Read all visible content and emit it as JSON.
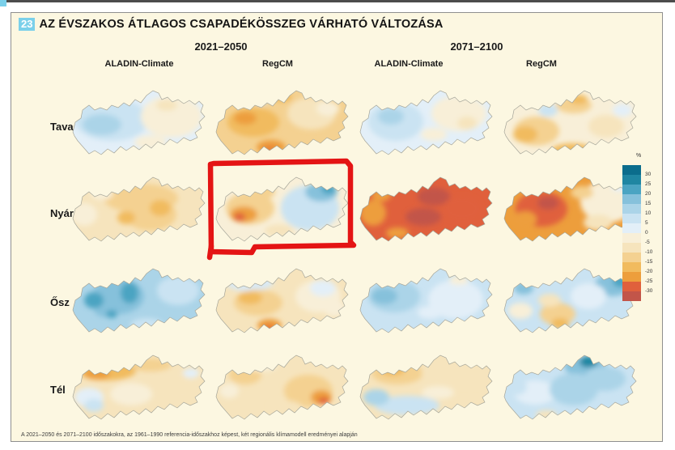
{
  "header": {
    "number": "23",
    "title": "AZ ÉVSZAKOS ÁTLAGOS CSAPADÉKÖSSZEG VÁRHATÓ VÁLTOZÁSA"
  },
  "footer": {
    "text": "A 2021–2050 és 2071–2100 időszakokra, az 1961–1990 referencia-időszakhoz képest, két regionális klímamodell eredményei alapján"
  },
  "annotation": {
    "shape": "hand-drawn red rectangle",
    "color": "#e41414",
    "target_season": "Nyár",
    "target_period": "2021–2050",
    "target_model": "RegCM"
  },
  "chart_data": {
    "type": "map-grid",
    "subject": "expected change of seasonal mean precipitation over Hungary (%)",
    "seasons": [
      "Tavasz",
      "Nyár",
      "Ősz",
      "Tél"
    ],
    "col_groups": [
      {
        "period": "2021–2050",
        "models": [
          "ALADIN-Climate",
          "RegCM"
        ]
      },
      {
        "period": "2071–2100",
        "models": [
          "ALADIN-Climate",
          "RegCM"
        ]
      }
    ],
    "legend": {
      "unit": "%",
      "ticks": [
        30,
        25,
        20,
        15,
        10,
        5,
        0,
        -5,
        -10,
        -15,
        -20,
        -25,
        -30
      ],
      "band_colors": [
        "#0b6d8c",
        "#1f86a2",
        "#4ba4c2",
        "#86c1db",
        "#abd4e8",
        "#cae3f2",
        "#e3eff8",
        "#f8efd8",
        "#f6e4bd",
        "#f4d191",
        "#f1bb5e",
        "#ed9e3c",
        "#e0603c",
        "#c25549"
      ]
    },
    "maps": [
      {
        "season": "Tavasz",
        "period": "2021–2050",
        "model": "ALADIN-Climate",
        "gist": "0 to +5% west, 0 to -5% east",
        "base": "#e3eff8",
        "patches": [
          [
            52,
            42,
            46,
            26,
            "#cae3f2"
          ],
          [
            40,
            48,
            24,
            13,
            "#abd4e8"
          ],
          [
            126,
            38,
            38,
            26,
            "#f8efd8"
          ],
          [
            120,
            24,
            13,
            7,
            "#f6e4bd"
          ],
          [
            100,
            70,
            20,
            9,
            "#f8efd8"
          ]
        ]
      },
      {
        "season": "Tavasz",
        "period": "2021–2050",
        "model": "RegCM",
        "gist": "-5 to -20% overall, strongest mid-west and south",
        "base": "#f4d191",
        "patches": [
          [
            50,
            45,
            32,
            18,
            "#f1bb5e"
          ],
          [
            40,
            40,
            14,
            8,
            "#ed9e3c"
          ],
          [
            72,
            76,
            18,
            9,
            "#ed9e3c"
          ],
          [
            70,
            79,
            8,
            5,
            "#e8823a"
          ],
          [
            122,
            34,
            30,
            20,
            "#f6e4bd"
          ],
          [
            142,
            28,
            14,
            9,
            "#f8efd8"
          ],
          [
            86,
            14,
            12,
            6,
            "#f1bb5e"
          ],
          [
            60,
            18,
            8,
            5,
            "#cae3f2"
          ]
        ]
      },
      {
        "season": "Tavasz",
        "period": "2071–2100",
        "model": "ALADIN-Climate",
        "gist": "0 to +10% west and centre, 0 to -10% east",
        "base": "#e3eff8",
        "patches": [
          [
            48,
            44,
            34,
            24,
            "#cae3f2"
          ],
          [
            42,
            38,
            16,
            10,
            "#abd4e8"
          ],
          [
            126,
            34,
            34,
            22,
            "#f8efd8"
          ],
          [
            136,
            46,
            12,
            8,
            "#f6e4bd"
          ],
          [
            95,
            60,
            16,
            8,
            "#f8efd8"
          ]
        ]
      },
      {
        "season": "Tavasz",
        "period": "2071–2100",
        "model": "RegCM",
        "gist": "-5 to -15% SW–NE band, near 0 elsewhere",
        "base": "#f8efd8",
        "patches": [
          [
            44,
            56,
            28,
            18,
            "#f4d191"
          ],
          [
            30,
            60,
            15,
            10,
            "#f1bb5e"
          ],
          [
            90,
            24,
            22,
            10,
            "#f4d191"
          ],
          [
            96,
            17,
            11,
            6,
            "#f1bb5e"
          ],
          [
            88,
            80,
            26,
            9,
            "#f1bb5e"
          ],
          [
            58,
            30,
            12,
            8,
            "#cae3f2"
          ],
          [
            130,
            50,
            22,
            14,
            "#f6e4bd"
          ],
          [
            150,
            30,
            12,
            8,
            "#e3eff8"
          ]
        ]
      },
      {
        "season": "Nyár",
        "period": "2021–2050",
        "model": "ALADIN-Climate",
        "gist": "-5 to -15% everywhere, strongest centre/NE",
        "base": "#f6e4bd",
        "patches": [
          [
            88,
            32,
            46,
            18,
            "#f4d191"
          ],
          [
            100,
            52,
            32,
            20,
            "#f4d191"
          ],
          [
            112,
            44,
            13,
            10,
            "#f1bb5e"
          ],
          [
            70,
            56,
            11,
            8,
            "#f1bb5e"
          ],
          [
            18,
            52,
            16,
            14,
            "#f8efd8"
          ],
          [
            40,
            26,
            14,
            8,
            "#f8efd8"
          ]
        ]
      },
      {
        "season": "Nyár",
        "period": "2021–2050",
        "model": "RegCM",
        "gist": "-10 to -25% west (red core), +5 to +20% east (blue NE)",
        "base": "#f8efd8",
        "patches": [
          [
            46,
            44,
            30,
            20,
            "#f4d191"
          ],
          [
            38,
            52,
            17,
            10,
            "#ed9e3c"
          ],
          [
            33,
            55,
            7,
            5,
            "#e0603c"
          ],
          [
            62,
            24,
            15,
            9,
            "#f4d191"
          ],
          [
            120,
            44,
            36,
            28,
            "#cae3f2"
          ],
          [
            134,
            24,
            20,
            12,
            "#86c1db"
          ],
          [
            143,
            21,
            9,
            6,
            "#4ba4c2"
          ],
          [
            82,
            72,
            18,
            8,
            "#f6e4bd"
          ]
        ]
      },
      {
        "season": "Nyár",
        "period": "2071–2100",
        "model": "ALADIN-Climate",
        "gist": "-20 to -30% and below everywhere",
        "base": "#e0603c",
        "patches": [
          [
            20,
            50,
            16,
            16,
            "#ed9e3c"
          ],
          [
            30,
            28,
            12,
            8,
            "#ed9e3c"
          ],
          [
            95,
            30,
            20,
            11,
            "#c25549"
          ],
          [
            82,
            55,
            22,
            11,
            "#c25549"
          ],
          [
            130,
            45,
            24,
            16,
            "#e0603c"
          ],
          [
            50,
            75,
            14,
            7,
            "#ed9e3c"
          ]
        ]
      },
      {
        "season": "Nyár",
        "period": "2071–2100",
        "model": "RegCM",
        "gist": "-20 to -30% west/centre, 0 to -5% NE",
        "base": "#ed9e3c",
        "patches": [
          [
            50,
            45,
            32,
            22,
            "#e0603c"
          ],
          [
            58,
            38,
            13,
            8,
            "#c25549"
          ],
          [
            30,
            58,
            14,
            10,
            "#ed9e3c"
          ],
          [
            132,
            36,
            34,
            26,
            "#f8efd8"
          ],
          [
            120,
            62,
            18,
            10,
            "#f6e4bd"
          ],
          [
            146,
            18,
            9,
            5,
            "#e3eff8"
          ],
          [
            100,
            25,
            14,
            8,
            "#f4d191"
          ]
        ]
      },
      {
        "season": "Ősz",
        "period": "2021–2050",
        "model": "ALADIN-Climate",
        "gist": "+5 to +20% everywhere, strongest centre/west",
        "base": "#abd4e8",
        "patches": [
          [
            60,
            40,
            32,
            22,
            "#86c1db"
          ],
          [
            74,
            36,
            11,
            13,
            "#4ba4c2"
          ],
          [
            46,
            56,
            16,
            10,
            "#86c1db"
          ],
          [
            52,
            62,
            7,
            5,
            "#4ba4c2"
          ],
          [
            134,
            33,
            26,
            18,
            "#cae3f2"
          ],
          [
            95,
            75,
            20,
            8,
            "#cae3f2"
          ],
          [
            30,
            45,
            12,
            10,
            "#4ba4c2"
          ]
        ]
      },
      {
        "season": "Ősz",
        "period": "2021–2050",
        "model": "RegCM",
        "gist": "-5 to -20% centre-west/south, ~0 to +5% north and east",
        "base": "#f6e4bd",
        "patches": [
          [
            45,
            22,
            30,
            12,
            "#d9e9f4"
          ],
          [
            56,
            48,
            30,
            16,
            "#f4d191"
          ],
          [
            46,
            42,
            15,
            8,
            "#f1bb5e"
          ],
          [
            70,
            76,
            15,
            8,
            "#ed9e3c"
          ],
          [
            69,
            80,
            7,
            5,
            "#e8763a"
          ],
          [
            130,
            40,
            28,
            20,
            "#f8efd8"
          ],
          [
            136,
            30,
            16,
            10,
            "#e3eff8"
          ],
          [
            150,
            55,
            14,
            10,
            "#f8efd8"
          ]
        ]
      },
      {
        "season": "Ősz",
        "period": "2071–2100",
        "model": "ALADIN-Climate",
        "gist": "+5 to +15% west, 0 to +5% east",
        "base": "#cae3f2",
        "patches": [
          [
            46,
            40,
            32,
            20,
            "#abd4e8"
          ],
          [
            34,
            40,
            16,
            10,
            "#86c1db"
          ],
          [
            122,
            44,
            34,
            24,
            "#e3eff8"
          ],
          [
            126,
            20,
            12,
            6,
            "#f8efd8"
          ],
          [
            90,
            60,
            15,
            8,
            "#e3eff8"
          ]
        ]
      },
      {
        "season": "Ősz",
        "period": "2071–2100",
        "model": "RegCM",
        "gist": "+5 to +15% mostly, -5 to -15% south-centre spot",
        "base": "#cae3f2",
        "patches": [
          [
            138,
            26,
            22,
            14,
            "#86c1db"
          ],
          [
            148,
            22,
            10,
            7,
            "#4ba4c2"
          ],
          [
            28,
            30,
            12,
            8,
            "#86c1db"
          ],
          [
            70,
            62,
            22,
            14,
            "#f4d191"
          ],
          [
            73,
            74,
            11,
            7,
            "#f1bb5e"
          ],
          [
            24,
            58,
            15,
            10,
            "#f8efd8"
          ],
          [
            108,
            40,
            22,
            16,
            "#e3eff8"
          ],
          [
            60,
            45,
            14,
            8,
            "#f6e4bd"
          ]
        ]
      },
      {
        "season": "Tél",
        "period": "2021–2050",
        "model": "ALADIN-Climate",
        "gist": "-5 to -20% north (NW band), ~0 to +5% SW",
        "base": "#f6e4bd",
        "patches": [
          [
            46,
            25,
            36,
            12,
            "#f1bb5e"
          ],
          [
            34,
            29,
            16,
            7,
            "#ed9e3c"
          ],
          [
            100,
            18,
            26,
            8,
            "#f4d191"
          ],
          [
            24,
            58,
            18,
            12,
            "#e3eff8"
          ],
          [
            30,
            68,
            12,
            8,
            "#cae3f2"
          ],
          [
            76,
            54,
            26,
            14,
            "#f8efd8"
          ],
          [
            130,
            44,
            26,
            18,
            "#f6e4bd"
          ],
          [
            150,
            28,
            10,
            6,
            "#e3eff8"
          ]
        ]
      },
      {
        "season": "Tél",
        "period": "2021–2050",
        "model": "RegCM",
        "gist": "-5 to -15% overall, -25% spot in SE",
        "base": "#f6e4bd",
        "patches": [
          [
            40,
            30,
            20,
            12,
            "#f4d191"
          ],
          [
            118,
            50,
            30,
            20,
            "#f4d191"
          ],
          [
            134,
            58,
            13,
            9,
            "#ed9e3c"
          ],
          [
            137,
            62,
            7,
            4,
            "#e0603c"
          ],
          [
            60,
            18,
            20,
            8,
            "#f8efd8"
          ],
          [
            90,
            70,
            20,
            8,
            "#f6e4bd"
          ],
          [
            20,
            50,
            12,
            9,
            "#f8efd8"
          ]
        ]
      },
      {
        "season": "Tél",
        "period": "2071–2100",
        "model": "ALADIN-Climate",
        "gist": "-5 to -15% north, 0 to +10% south",
        "base": "#f6e4bd",
        "patches": [
          [
            50,
            28,
            32,
            14,
            "#f4d191"
          ],
          [
            44,
            24,
            15,
            7,
            "#f1bb5e"
          ],
          [
            110,
            28,
            30,
            13,
            "#f6e4bd"
          ],
          [
            62,
            68,
            40,
            12,
            "#cae3f2"
          ],
          [
            24,
            58,
            16,
            10,
            "#abd4e8"
          ],
          [
            100,
            52,
            20,
            8,
            "#f8efd8"
          ],
          [
            140,
            35,
            18,
            10,
            "#f6e4bd"
          ]
        ]
      },
      {
        "season": "Tél",
        "period": "2071–2100",
        "model": "RegCM",
        "gist": "+5 to +20% overall, strongest NE",
        "base": "#cae3f2",
        "patches": [
          [
            104,
            20,
            26,
            12,
            "#86c1db"
          ],
          [
            108,
            14,
            11,
            7,
            "#1f86a2"
          ],
          [
            128,
            35,
            26,
            15,
            "#abd4e8"
          ],
          [
            42,
            52,
            26,
            15,
            "#e3eff8"
          ],
          [
            56,
            80,
            13,
            6,
            "#f6e4bd"
          ],
          [
            90,
            48,
            30,
            20,
            "#abd4e8"
          ],
          [
            20,
            45,
            12,
            10,
            "#cae3f2"
          ]
        ]
      }
    ]
  }
}
